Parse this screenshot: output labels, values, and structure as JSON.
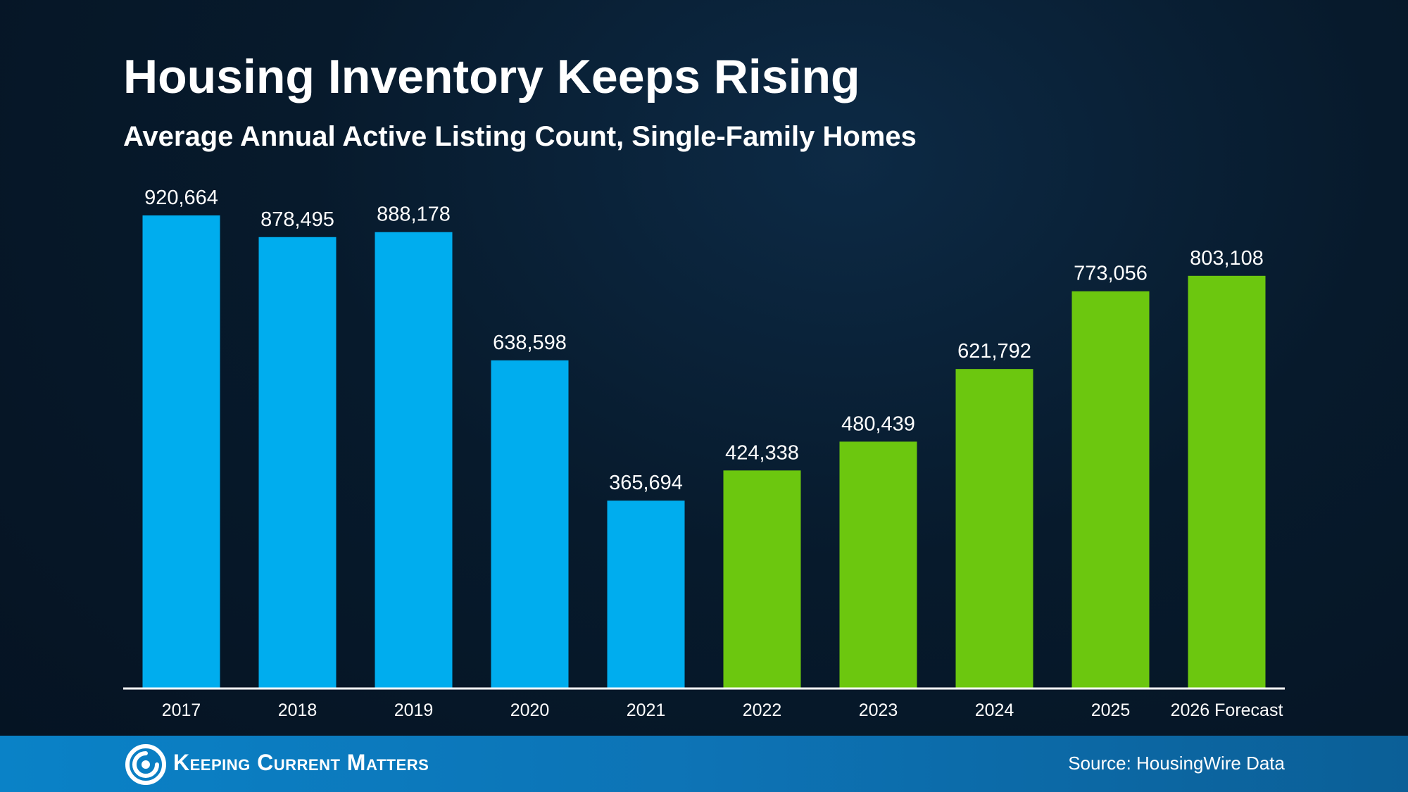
{
  "colors": {
    "historical_bar": "#00adee",
    "recent_bar": "#6cc70f",
    "axis_line": "#ffffff",
    "background": "#071a2c",
    "footer": "#0a82c7"
  },
  "chart_data": {
    "type": "bar",
    "title": "Housing Inventory Keeps Rising",
    "subtitle": "Average Annual Active Listing Count, Single-Family Homes",
    "xlabel": "",
    "ylabel": "",
    "ylim": [
      0,
      920664
    ],
    "grid": false,
    "categories": [
      "2017",
      "2018",
      "2019",
      "2020",
      "2021",
      "2022",
      "2023",
      "2024",
      "2025",
      "2026 Forecast"
    ],
    "values": [
      920664,
      878495,
      888178,
      638598,
      365694,
      424338,
      480439,
      621792,
      773056,
      803108
    ],
    "value_labels": [
      "920,664",
      "878,495",
      "888,178",
      "638,598",
      "365,694",
      "424,338",
      "480,439",
      "621,792",
      "773,056",
      "803,108"
    ],
    "bar_colors": [
      "#00adee",
      "#00adee",
      "#00adee",
      "#00adee",
      "#00adee",
      "#6cc70f",
      "#6cc70f",
      "#6cc70f",
      "#6cc70f",
      "#6cc70f"
    ]
  },
  "footer": {
    "brand": "Keeping Current Matters",
    "logo_icon": "spiral-logo-icon",
    "source": "Source: HousingWire Data"
  }
}
